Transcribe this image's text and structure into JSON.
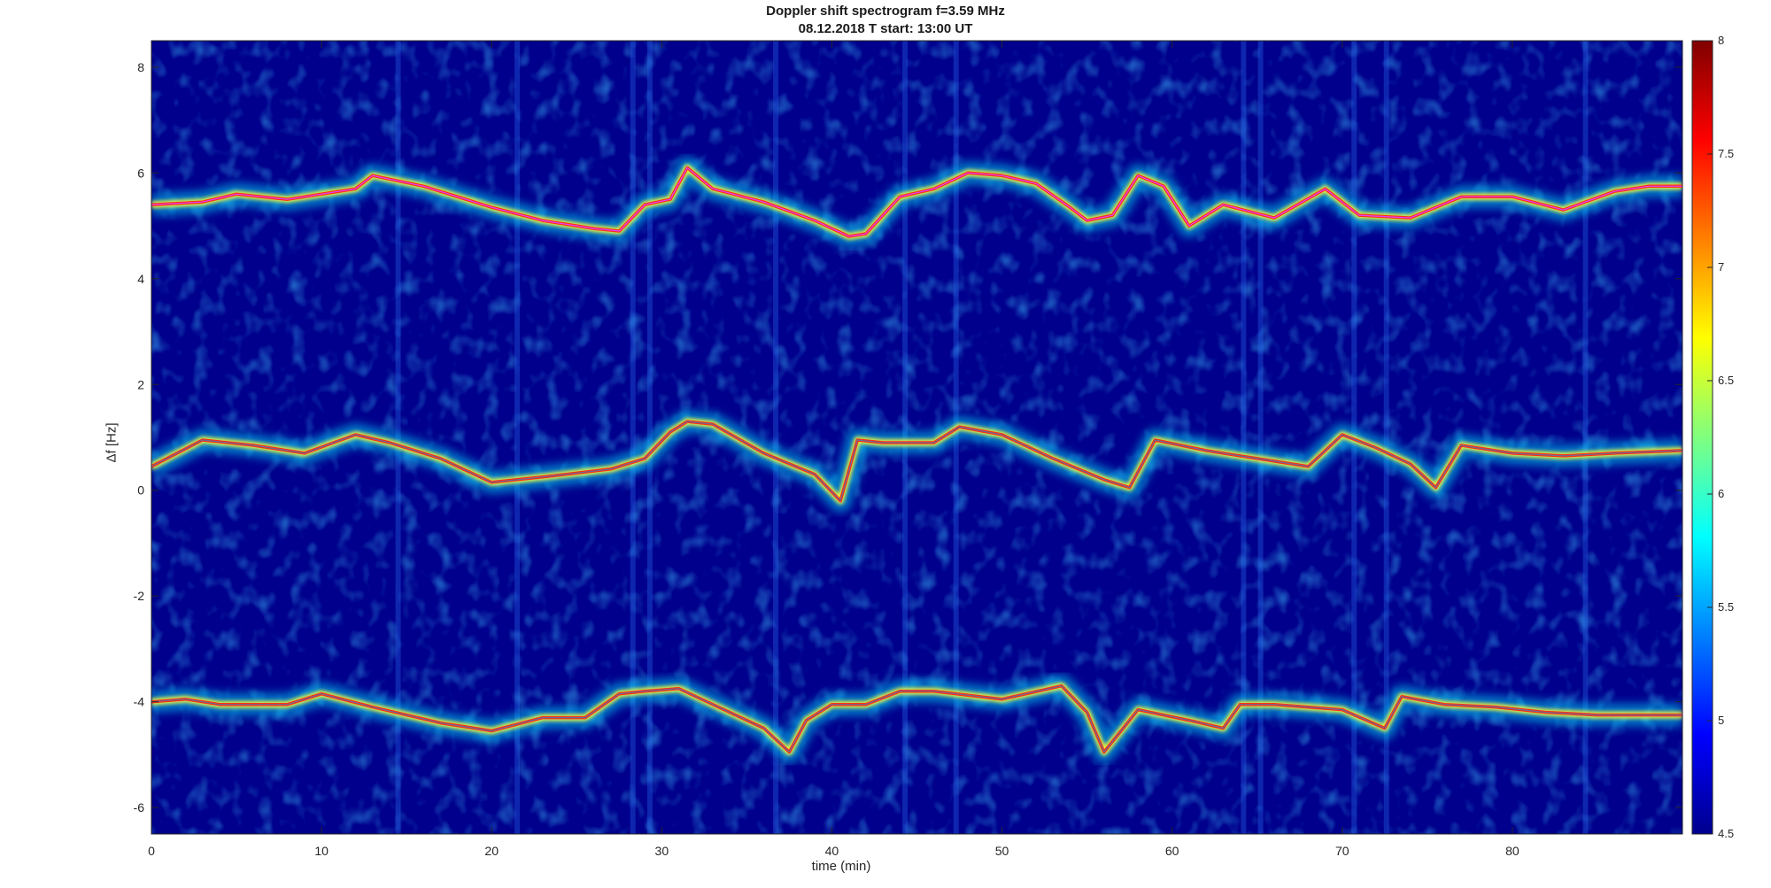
{
  "chart_data": {
    "type": "heatmap",
    "title": "Doppler shift spectrogram f=3.59 MHz",
    "subtitle": "08.12.2018   T start: 13:00 UT",
    "xlabel": "time (min)",
    "ylabel": "Δf [Hz]",
    "xlim": [
      0,
      90
    ],
    "ylim": [
      -6.5,
      8.5
    ],
    "xticks": [
      0,
      10,
      20,
      30,
      40,
      50,
      60,
      70,
      80
    ],
    "yticks": [
      -6,
      -4,
      -2,
      0,
      2,
      4,
      6,
      8
    ],
    "colormap": "jet",
    "colorbar": {
      "clim": [
        4.5,
        8
      ],
      "ticks": [
        4.5,
        5,
        5.5,
        6,
        6.5,
        7,
        7.5,
        8
      ],
      "placement": "right"
    },
    "background_color": "#00008c",
    "series": [
      {
        "trace": "upper",
        "x": [
          0,
          3,
          5,
          8,
          10,
          12,
          13,
          16,
          20,
          23,
          26,
          27.5,
          29,
          30.5,
          31.5,
          33,
          36,
          39,
          41,
          42,
          44,
          46,
          48,
          50,
          52,
          54,
          55,
          56.5,
          58,
          59.5,
          61,
          63,
          66,
          69,
          71,
          74,
          77,
          80,
          83,
          86,
          88,
          90
        ],
        "y": [
          5.4,
          5.45,
          5.6,
          5.5,
          5.6,
          5.7,
          5.95,
          5.75,
          5.35,
          5.1,
          4.95,
          4.9,
          5.4,
          5.5,
          6.1,
          5.7,
          5.45,
          5.1,
          4.8,
          4.85,
          5.55,
          5.7,
          6.0,
          5.95,
          5.8,
          5.35,
          5.1,
          5.2,
          5.95,
          5.75,
          5.0,
          5.4,
          5.15,
          5.7,
          5.2,
          5.15,
          5.55,
          5.55,
          5.3,
          5.65,
          5.75,
          5.75
        ]
      },
      {
        "trace": "middle",
        "x": [
          0,
          3,
          6,
          9,
          12,
          14,
          17,
          20,
          23,
          27,
          29,
          30.5,
          31.5,
          33,
          36,
          39,
          40.5,
          41.5,
          43,
          46,
          47.5,
          50,
          53,
          56,
          57.5,
          59,
          62,
          65,
          68,
          70,
          72,
          74,
          75.5,
          77,
          80,
          83,
          86,
          90
        ],
        "y": [
          0.45,
          0.95,
          0.85,
          0.7,
          1.05,
          0.9,
          0.6,
          0.15,
          0.25,
          0.4,
          0.6,
          1.1,
          1.3,
          1.25,
          0.7,
          0.3,
          -0.2,
          0.95,
          0.9,
          0.9,
          1.2,
          1.05,
          0.6,
          0.2,
          0.05,
          0.95,
          0.75,
          0.6,
          0.45,
          1.05,
          0.8,
          0.5,
          0.05,
          0.85,
          0.7,
          0.65,
          0.7,
          0.75
        ]
      },
      {
        "trace": "lower",
        "x": [
          0,
          2,
          4,
          8,
          10,
          13,
          17,
          20,
          23,
          25.5,
          27.5,
          29,
          31,
          33,
          36,
          37.5,
          38.5,
          40,
          42,
          44,
          46,
          50,
          53.5,
          55,
          56,
          58,
          61,
          63,
          64,
          66,
          70,
          72.5,
          73.5,
          76,
          79,
          82,
          85,
          90
        ],
        "y": [
          -4.0,
          -3.95,
          -4.05,
          -4.05,
          -3.85,
          -4.1,
          -4.4,
          -4.55,
          -4.3,
          -4.3,
          -3.85,
          -3.8,
          -3.75,
          -4.05,
          -4.5,
          -4.95,
          -4.35,
          -4.05,
          -4.05,
          -3.8,
          -3.8,
          -3.95,
          -3.7,
          -4.2,
          -4.95,
          -4.15,
          -4.35,
          -4.5,
          -4.05,
          -4.05,
          -4.15,
          -4.5,
          -3.9,
          -4.05,
          -4.1,
          -4.2,
          -4.25,
          -4.25
        ]
      }
    ]
  }
}
